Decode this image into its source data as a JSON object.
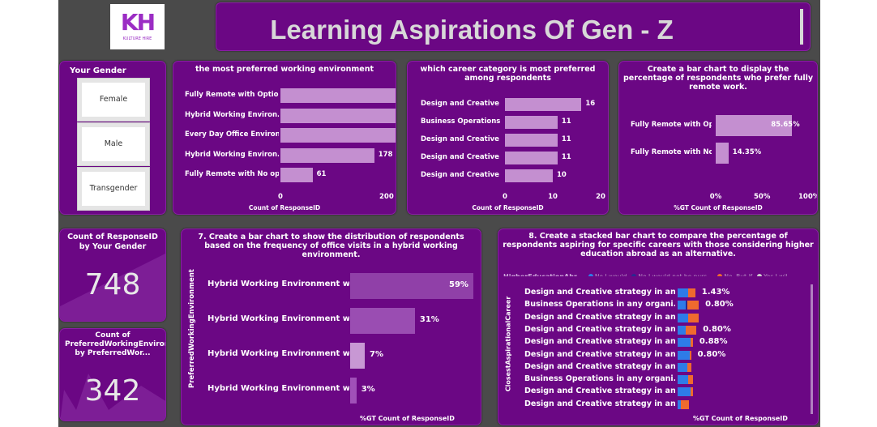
{
  "header": {
    "title": "Learning Aspirations Of Gen - Z",
    "logo_text": "KH",
    "logo_subtext": "KULTURE HIRE"
  },
  "gender_slicer": {
    "title": "Your Gender",
    "options": [
      "Female",
      "Male",
      "Transgender"
    ]
  },
  "card_responses": {
    "label": "Count of ResponseID by Your Gender",
    "value": "748"
  },
  "card_env": {
    "label": "Count of PreferredWorkingEnvironment by PreferredWor...",
    "value": "342"
  },
  "colors": {
    "bar": "#c48fd0",
    "panel": "#6b0784",
    "blue": "#2e7be8",
    "orange": "#ef6a2e",
    "navy": "#2b2790",
    "grey": "#cfcfcf"
  },
  "chart_data": [
    {
      "id": "env",
      "type": "bar",
      "title": "the most preferred working environment",
      "xlabel": "Count of ResponseID",
      "categories": [
        "Fully Remote with Optio...",
        "Hybrid Working Environ...",
        "Every Day Office Environ...",
        "Hybrid Working Environ...",
        "Fully Remote with No op..."
      ],
      "values": [
        364,
        342,
        252,
        178,
        61
      ],
      "xlim": [
        0,
        400
      ],
      "ticks": [
        "0",
        "200",
        "400"
      ]
    },
    {
      "id": "career",
      "type": "bar",
      "title": "which career category is most preferred among respondents",
      "xlabel": "Count of ResponseID",
      "categories": [
        "Design and Creative s...",
        "Business Operations i...",
        "Design and Creative s...",
        "Design and Creative s...",
        "Design and Creative s..."
      ],
      "values": [
        16,
        11,
        11,
        11,
        10
      ],
      "xlim": [
        0,
        20
      ],
      "ticks": [
        "0",
        "10",
        "20"
      ]
    },
    {
      "id": "remote",
      "type": "bar",
      "title": "Create a bar chart to display the percentage of respondents who prefer fully remote work.",
      "xlabel": "%GT Count of ResponseID",
      "categories": [
        "Fully Remote with Op...",
        "Fully Remote with No..."
      ],
      "values": [
        85.65,
        14.35
      ],
      "value_labels": [
        "85.65%",
        "14.35%"
      ],
      "xlim": [
        0,
        100
      ],
      "ticks": [
        "0%",
        "50%",
        "100%"
      ]
    },
    {
      "id": "hybrid",
      "type": "bar",
      "title": "7. Create a bar chart to show the distribution of respondents based on the frequency of office visits in a hybrid working environment.",
      "xlabel": "%GT Count of ResponseID",
      "ylabel": "PreferredWorkingEnvironment",
      "categories": [
        "Hybrid Working Environment w...",
        "Hybrid Working Environment w...",
        "Hybrid Working Environment w...",
        "Hybrid Working Environment w..."
      ],
      "values": [
        59,
        31,
        7,
        3
      ],
      "value_labels": [
        "59%",
        "31%",
        "7%",
        "3%"
      ],
      "xlim": [
        0,
        59
      ]
    },
    {
      "id": "stacked",
      "type": "bar",
      "title": "8. Create a stacked bar chart to compare the percentage of respondents aspiring for specific careers with those considering higher education abroad as an alternative.",
      "xlabel": "%GT Count of ResponseID",
      "ylabel": "ClosestAspirationalCareer",
      "legend_title": "HigherEducationAbr...",
      "legend": [
        "No I would",
        "No I would not be purs...",
        "No. But if",
        "Yes I wil"
      ],
      "categories": [
        "Design and Creative strategy in an...",
        "Business Operations in any organi...",
        "Design and Creative strategy in an...",
        "Design and Creative strategy in an...",
        "Design and Creative strategy in an...",
        "Design and Creative strategy in an...",
        "Design and Creative strategy in an...",
        "Business Operations in any organi...",
        "Design and Creative strategy in an...",
        "Design and Creative strategy in an..."
      ],
      "series": [
        {
          "name": "No I would",
          "values": [
            0.9,
            0.7,
            0.9,
            0.7,
            1.1,
            1.0,
            0.8,
            0.9,
            1.1,
            0.3
          ]
        },
        {
          "name": "No I would not be purs...",
          "values": [
            0,
            0.1,
            0,
            0,
            0,
            0.05,
            0,
            0,
            0,
            0
          ]
        },
        {
          "name": "No. But if",
          "values": [
            0.6,
            1.0,
            0.9,
            0.9,
            0.2,
            0.1,
            0.4,
            0.4,
            0.2,
            0.7
          ]
        },
        {
          "name": "Yes I wil",
          "values": [
            0,
            0,
            0,
            0,
            0,
            0,
            0,
            0,
            0,
            0
          ]
        }
      ],
      "value_labels": [
        "1.43%",
        "0.80%",
        "",
        "0.80%",
        "0.88%",
        "0.80%",
        "",
        "",
        "",
        ""
      ]
    }
  ]
}
